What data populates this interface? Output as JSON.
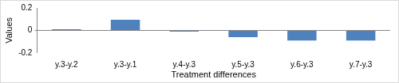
{
  "chart_data": {
    "type": "bar",
    "categories": [
      "y.3-y.2",
      "y.3-y.1",
      "y.4-y.3",
      "y.5-y.3",
      "y.6-y.3",
      "y.7-y.3"
    ],
    "values": [
      0.01,
      0.095,
      -0.012,
      -0.06,
      -0.09,
      -0.09
    ],
    "color": "#4f81bd",
    "x_label": "Treatment differences",
    "y_label": "Values",
    "ylim": [
      -0.2,
      0.2
    ],
    "yticks": [
      -0.2,
      0,
      0.2
    ],
    "grid": false
  }
}
